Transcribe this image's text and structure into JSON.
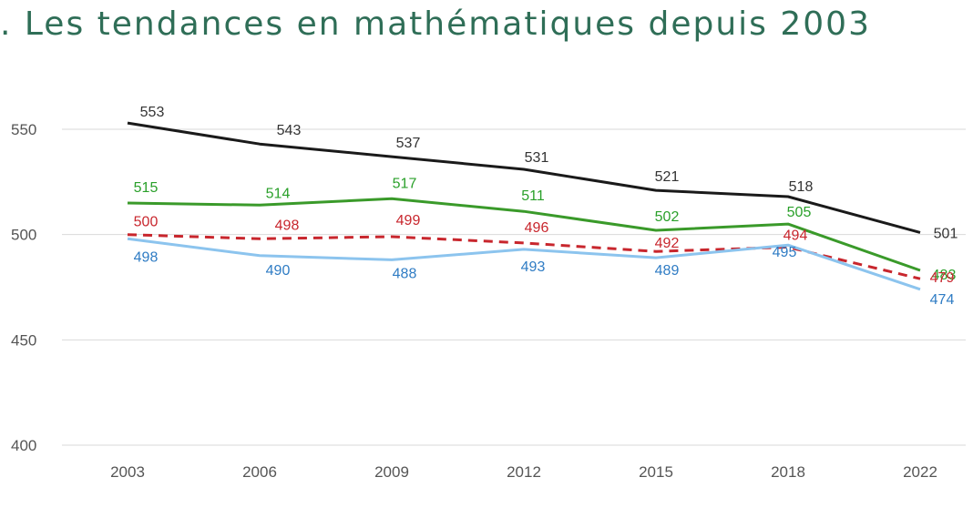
{
  "title": ". Les tendances en mathématiques depuis 2003",
  "chart_data": {
    "type": "line",
    "title": ". Les tendances en mathématiques depuis 2003",
    "xlabel": "",
    "ylabel": "",
    "categories": [
      "2003",
      "2006",
      "2009",
      "2012",
      "2015",
      "2018",
      "2022"
    ],
    "y_ticks": [
      400,
      450,
      500,
      550
    ],
    "ylim": [
      400,
      570
    ],
    "grid": true,
    "legend": "none",
    "series": [
      {
        "values": [
          553,
          543,
          537,
          531,
          521,
          518,
          501
        ],
        "color": "#1a1a1a",
        "label_color": "#333333",
        "dash": false
      },
      {
        "values": [
          515,
          514,
          517,
          511,
          502,
          505,
          483
        ],
        "color": "#3a9a2a",
        "label_color": "#2aa02a",
        "dash": false
      },
      {
        "values": [
          500,
          498,
          499,
          496,
          492,
          494,
          479
        ],
        "color": "#c8262d",
        "label_color": "#c8262d",
        "dash": true
      },
      {
        "values": [
          498,
          490,
          488,
          493,
          489,
          495,
          474
        ],
        "color": "#8cc4ee",
        "label_color": "#2f7cc4",
        "dash": false
      }
    ]
  }
}
